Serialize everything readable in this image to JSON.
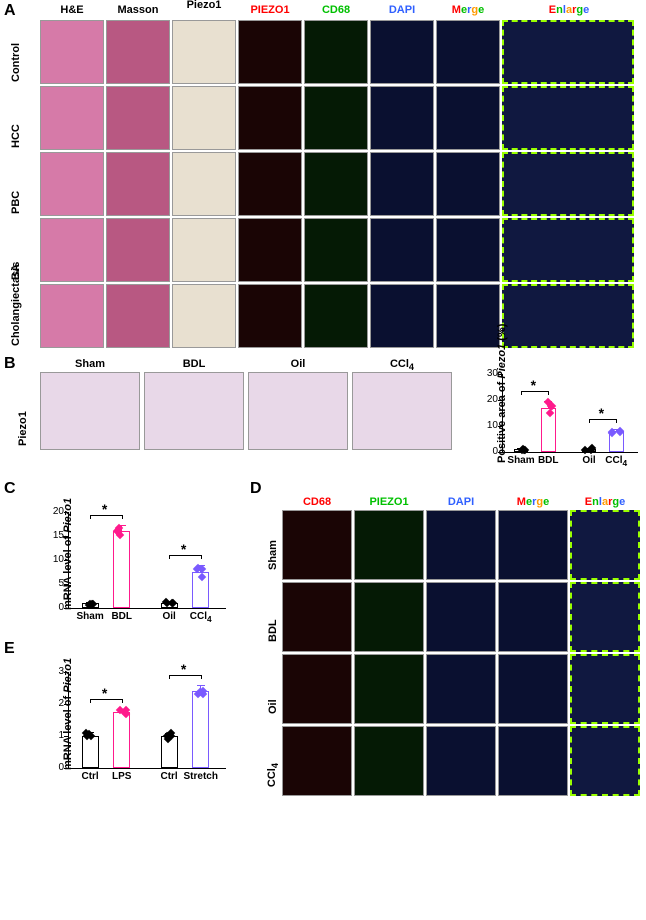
{
  "panels": {
    "A": "A",
    "B": "B",
    "C": "C",
    "D": "D",
    "E": "E"
  },
  "panelA": {
    "col_headers": [
      "H&E",
      "Masson",
      "Piezo1",
      "PIEZO1",
      "CD68",
      "DAPI"
    ],
    "merge_header": {
      "M": "M",
      "e": "e",
      "r": "r",
      "g": "g",
      "e2": "e"
    },
    "enlarge_header": {
      "E": "E",
      "n": "n",
      "l": "l",
      "a": "a",
      "r": "r",
      "g": "g",
      "e": "e"
    },
    "row_labels": [
      "Control",
      "HCC",
      "PBC",
      "BA",
      "Cholangiectasis"
    ],
    "header_colors": {
      "PIEZO1": "#ff0000",
      "CD68": "#00c000",
      "DAPI": "#3060ff",
      "M": "#ff0000",
      "e": "#00c000",
      "r": "#3060ff",
      "g": "#ff9900",
      "E": "#ff0000",
      "n": "#00c000",
      "l": "#3060ff",
      "a": "#ff9900"
    },
    "cell_colors": {
      "he": "#d67aa8",
      "masson": "#b85882",
      "piezo": "#e8e0d0",
      "piezo1_if": "#1a0505",
      "cd68": "#051a05",
      "dapi": "#0a1030",
      "merge": "#0a1030",
      "enlarge": "#101840"
    }
  },
  "panelB": {
    "label": "Piezo1",
    "images": [
      "Sham",
      "BDL",
      "Oil",
      "CCl₄"
    ],
    "image_bg": "#e8d8e8",
    "chart": {
      "y_title": "Positive area of Piezo1 (%)",
      "y_max": 30,
      "y_ticks": [
        0,
        10,
        20,
        30
      ],
      "groups": [
        "Sham",
        "BDL",
        "Oil",
        "CCl₄"
      ],
      "values": [
        1.0,
        17.0,
        1.0,
        8.0
      ],
      "colors": [
        "#000000",
        "#ff1a8c",
        "#000000",
        "#7a5aff"
      ],
      "errors": [
        0.5,
        2.5,
        0.5,
        1.0
      ],
      "sig": [
        {
          "from": 0,
          "to": 1,
          "label": "*"
        },
        {
          "from": 2,
          "to": 3,
          "label": "*"
        }
      ]
    }
  },
  "panelC": {
    "chart": {
      "y_title": "mRNA level of Piezo1",
      "y_max": 20,
      "y_ticks": [
        0,
        5,
        10,
        15,
        20
      ],
      "groups": [
        "Sham",
        "BDL",
        "Oil",
        "CCl₄"
      ],
      "values": [
        1.0,
        16.0,
        1.0,
        7.5
      ],
      "colors": [
        "#000000",
        "#ff1a8c",
        "#000000",
        "#7a5aff"
      ],
      "errors": [
        0.3,
        1.2,
        0.3,
        1.5
      ],
      "sig": [
        {
          "from": 0,
          "to": 1,
          "label": "*"
        },
        {
          "from": 2,
          "to": 3,
          "label": "*"
        }
      ]
    }
  },
  "panelD": {
    "col_headers": [
      "CD68",
      "PIEZO1",
      "DAPI"
    ],
    "merge_header": {
      "M": "M",
      "e": "e",
      "r": "r",
      "g": "g",
      "e2": "e"
    },
    "enlarge_header": {
      "E": "E",
      "n": "n",
      "l": "l",
      "a": "a",
      "r": "r",
      "g": "g",
      "e": "e"
    },
    "row_labels": [
      "Sham",
      "BDL",
      "Oil",
      "CCl₄"
    ],
    "header_colors": {
      "CD68": "#ff0000",
      "PIEZO1": "#00c000",
      "DAPI": "#3060ff"
    },
    "cell_colors": {
      "cd68": "#1a0505",
      "piezo1": "#051a05",
      "dapi": "#0a1030",
      "merge": "#0a1030",
      "enlarge": "#101840"
    }
  },
  "panelE": {
    "chart": {
      "y_title": "mRNA level of Piezo1",
      "y_max": 3,
      "y_ticks": [
        0,
        1,
        2,
        3
      ],
      "groups": [
        "Ctrl",
        "LPS",
        "Ctrl",
        "Stretch"
      ],
      "values": [
        1.0,
        1.75,
        1.0,
        2.4
      ],
      "colors": [
        "#000000",
        "#ff1a8c",
        "#000000",
        "#7a5aff"
      ],
      "errors": [
        0.12,
        0.08,
        0.1,
        0.2
      ],
      "sig": [
        {
          "from": 0,
          "to": 1,
          "label": "*"
        },
        {
          "from": 2,
          "to": 3,
          "label": "*"
        }
      ]
    }
  }
}
